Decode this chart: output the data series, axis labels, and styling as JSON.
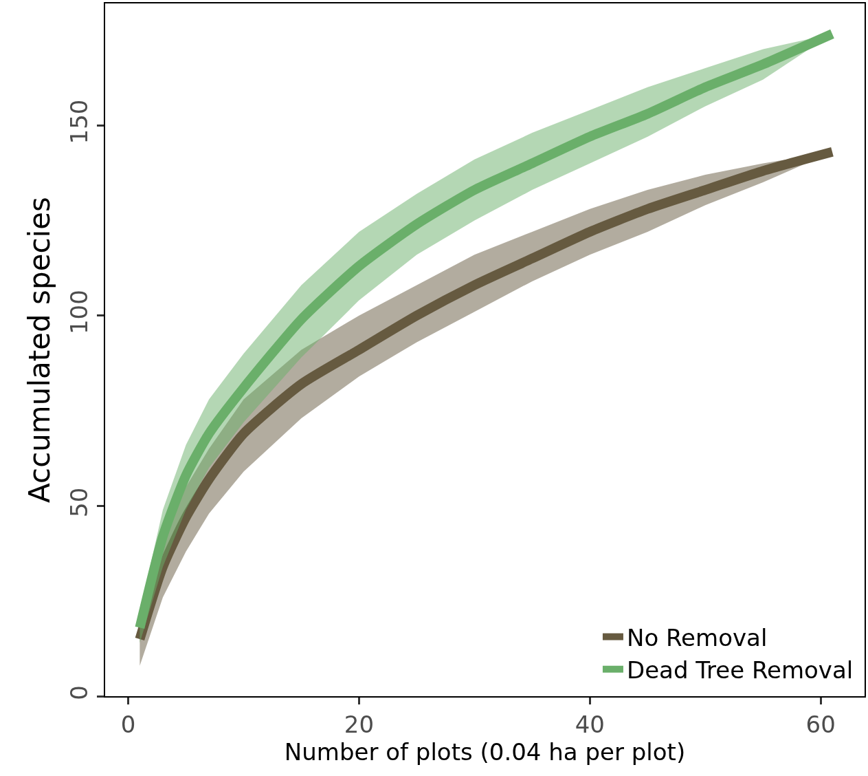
{
  "chart_data": {
    "type": "line",
    "xlabel": "Number of plots (0.04 ha per plot)",
    "ylabel": "Accumulated species",
    "x": [
      1,
      3,
      5,
      7,
      10,
      15,
      20,
      25,
      30,
      35,
      40,
      45,
      50,
      55,
      61
    ],
    "xlim": [
      -2,
      63.8
    ],
    "xticks": [
      0,
      20,
      40,
      60
    ],
    "ylim": [
      0,
      182
    ],
    "yticks": [
      0,
      50,
      100,
      150
    ],
    "grid": false,
    "legend": "bottom right",
    "marker": "none",
    "line_style": "solid",
    "series": [
      {
        "name": "No Removal",
        "color": "#665a40",
        "values": [
          15,
          34,
          47,
          57,
          69,
          82,
          91,
          100,
          108,
          115,
          122,
          128,
          133,
          138,
          143
        ],
        "lower": [
          8,
          26,
          38,
          48,
          59,
          73,
          84,
          93,
          101,
          109,
          116,
          122,
          129,
          135,
          143
        ],
        "upper": [
          20,
          41,
          55,
          65,
          78,
          91,
          100,
          108,
          116,
          122,
          128,
          133,
          137,
          140,
          143
        ]
      },
      {
        "name": "Dead Tree Removal",
        "color": "#6aaf6a",
        "values": [
          18,
          42,
          58,
          69,
          81,
          99,
          113,
          124,
          133,
          140,
          147,
          153,
          160,
          166,
          174
        ],
        "lower": [
          14,
          34,
          49,
          60,
          72,
          89,
          104,
          116,
          125,
          133,
          140,
          147,
          155,
          162,
          174
        ],
        "upper": [
          22,
          49,
          66,
          78,
          90,
          108,
          122,
          132,
          141,
          148,
          154,
          160,
          165,
          170,
          174
        ]
      }
    ]
  }
}
